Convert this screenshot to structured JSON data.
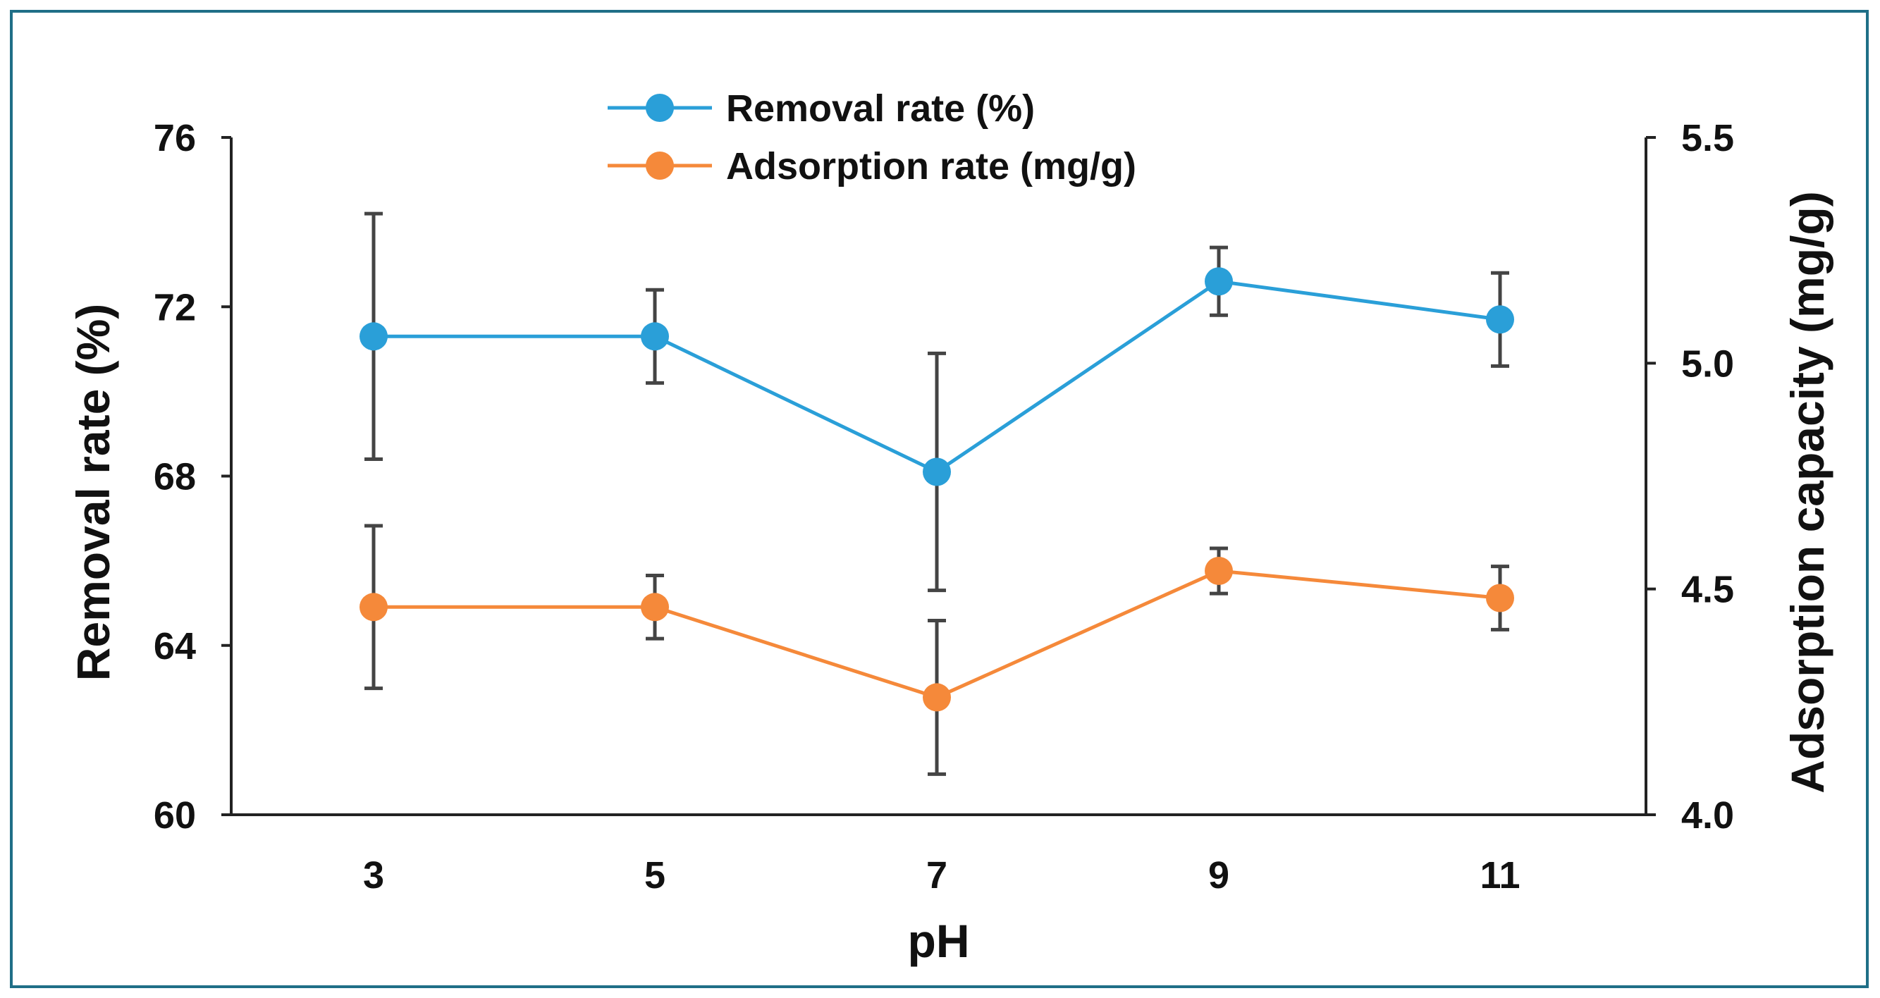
{
  "chart_data": {
    "type": "line",
    "x": [
      "3",
      "5",
      "7",
      "9",
      "11"
    ],
    "xlabel": "pH",
    "ylabel_left": "Removal rate (%)",
    "ylabel_right": "Adsorption capacity (mg/g)",
    "ylim_left": [
      60,
      76
    ],
    "ylim_right": [
      4.0,
      5.5
    ],
    "yticks_left": [
      "60",
      "64",
      "68",
      "72",
      "76"
    ],
    "yticks_right": [
      "4.0",
      "4.5",
      "5.0",
      "5.5"
    ],
    "grid": false,
    "legend_position": "top-center",
    "series": [
      {
        "name": "Removal rate (%)",
        "axis": "left",
        "color": "#2a9fd8",
        "values": [
          71.3,
          71.3,
          68.1,
          72.6,
          71.7
        ],
        "error": [
          2.9,
          1.1,
          2.8,
          0.8,
          1.1
        ]
      },
      {
        "name": "Adsorption rate (mg/g)",
        "axis": "right",
        "color": "#f5893a",
        "values": [
          4.46,
          4.46,
          4.26,
          4.54,
          4.48
        ],
        "error": [
          0.18,
          0.07,
          0.17,
          0.05,
          0.07
        ]
      }
    ]
  }
}
